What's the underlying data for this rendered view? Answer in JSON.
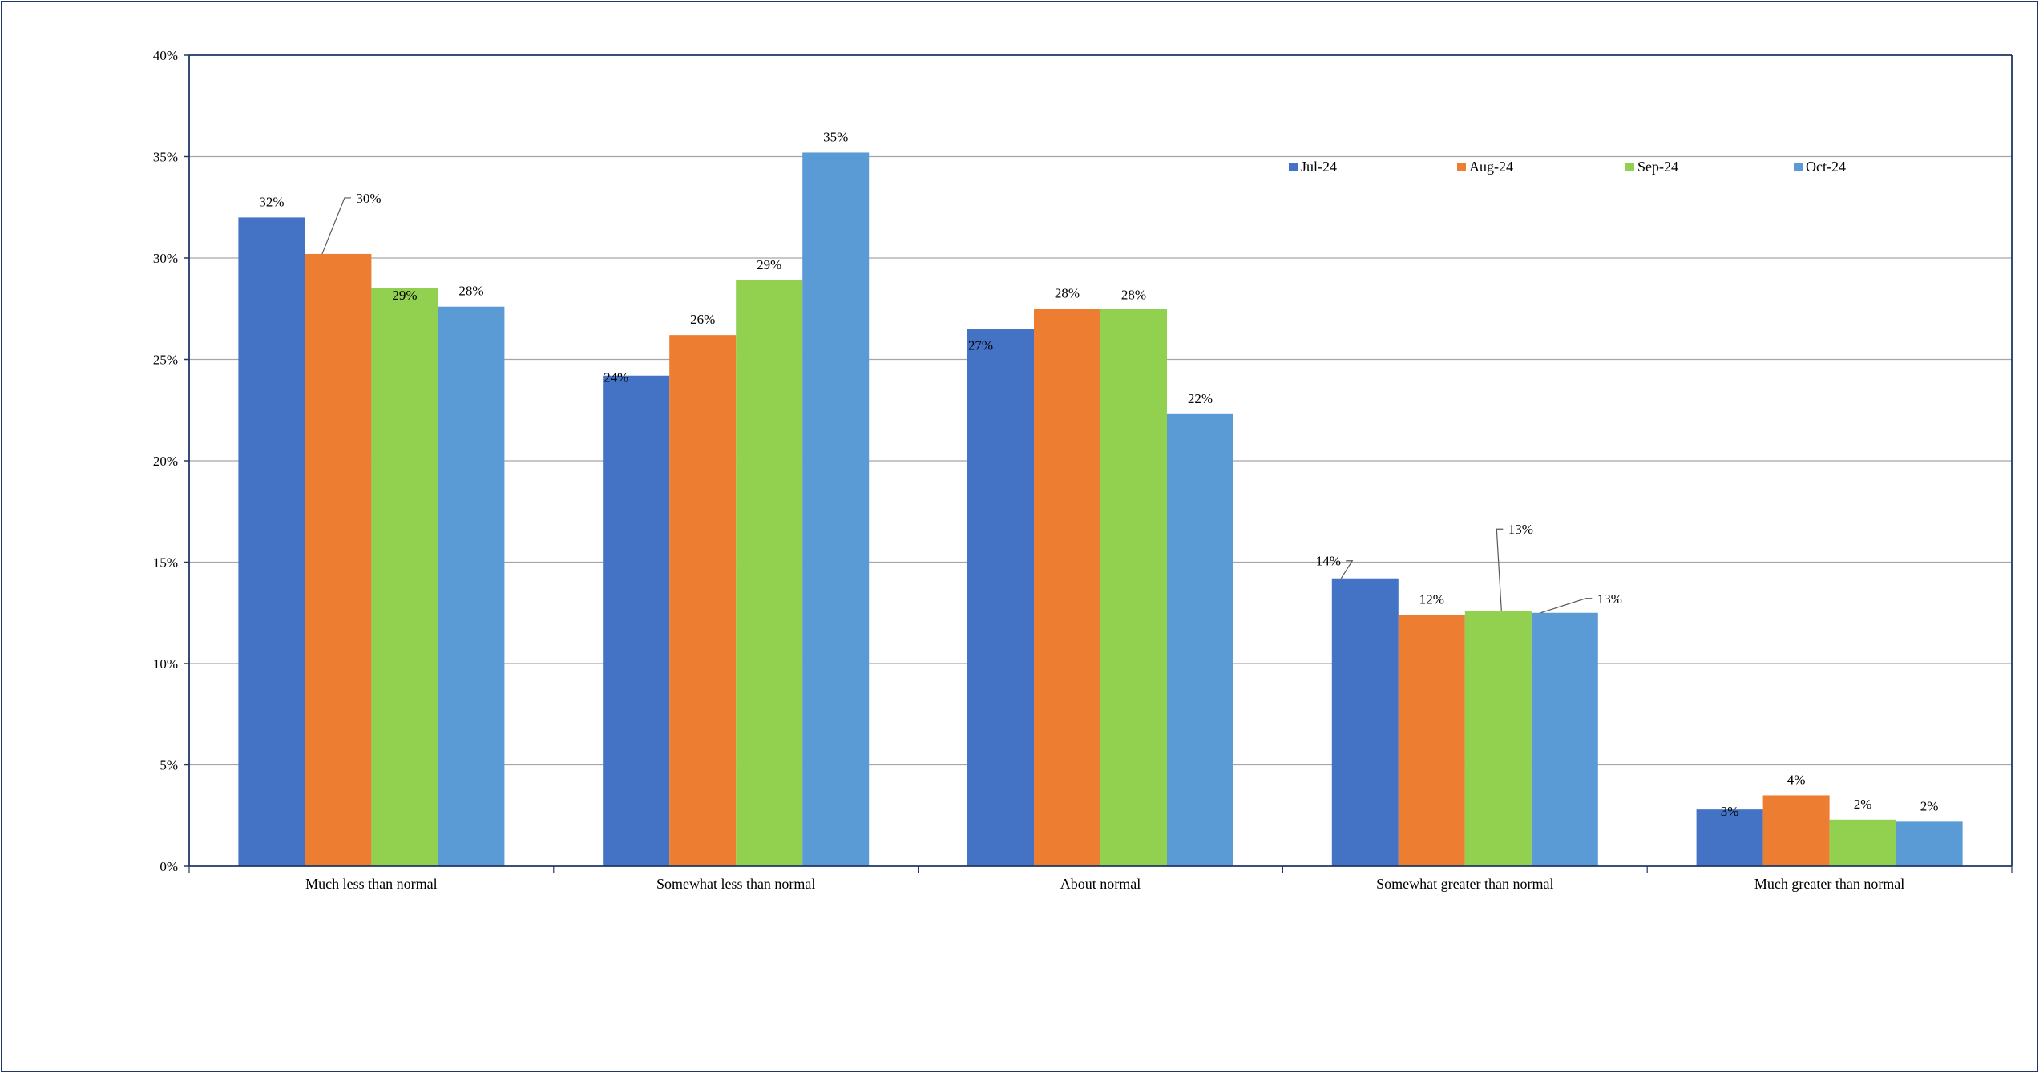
{
  "chart_data": {
    "type": "bar",
    "categories": [
      "Much less than normal",
      "Somewhat less than normal",
      "About normal",
      "Somewhat greater than normal",
      "Much greater than normal"
    ],
    "series": [
      {
        "name": "Jul-24",
        "color": "#4472c4",
        "values": [
          32.0,
          24.2,
          26.5,
          14.2,
          2.8
        ],
        "labels": [
          "32%",
          "24%",
          "27%",
          "14%",
          "3%"
        ]
      },
      {
        "name": "Aug-24",
        "color": "#ed7d31",
        "values": [
          30.2,
          26.2,
          27.5,
          12.4,
          3.5
        ],
        "labels": [
          "30%",
          "26%",
          "28%",
          "12%",
          "4%"
        ]
      },
      {
        "name": "Sep-24",
        "color": "#92d050",
        "values": [
          28.5,
          28.9,
          27.5,
          12.6,
          2.3
        ],
        "labels": [
          "29%",
          "29%",
          "28%",
          "13%",
          "2%"
        ]
      },
      {
        "name": "Oct-24",
        "color": "#5b9bd5",
        "values": [
          27.6,
          35.2,
          22.3,
          12.5,
          2.2
        ],
        "labels": [
          "28%",
          "35%",
          "22%",
          "13%",
          "2%"
        ]
      }
    ],
    "ylim": [
      0,
      40
    ],
    "yticks": [
      0,
      5,
      10,
      15,
      20,
      25,
      30,
      35,
      40
    ],
    "ytick_labels": [
      "0%",
      "5%",
      "10%",
      "15%",
      "20%",
      "25%",
      "30%",
      "35%",
      "40%"
    ],
    "grid": true,
    "legend_position": "top-right",
    "title": "",
    "xlabel": "",
    "ylabel": ""
  }
}
